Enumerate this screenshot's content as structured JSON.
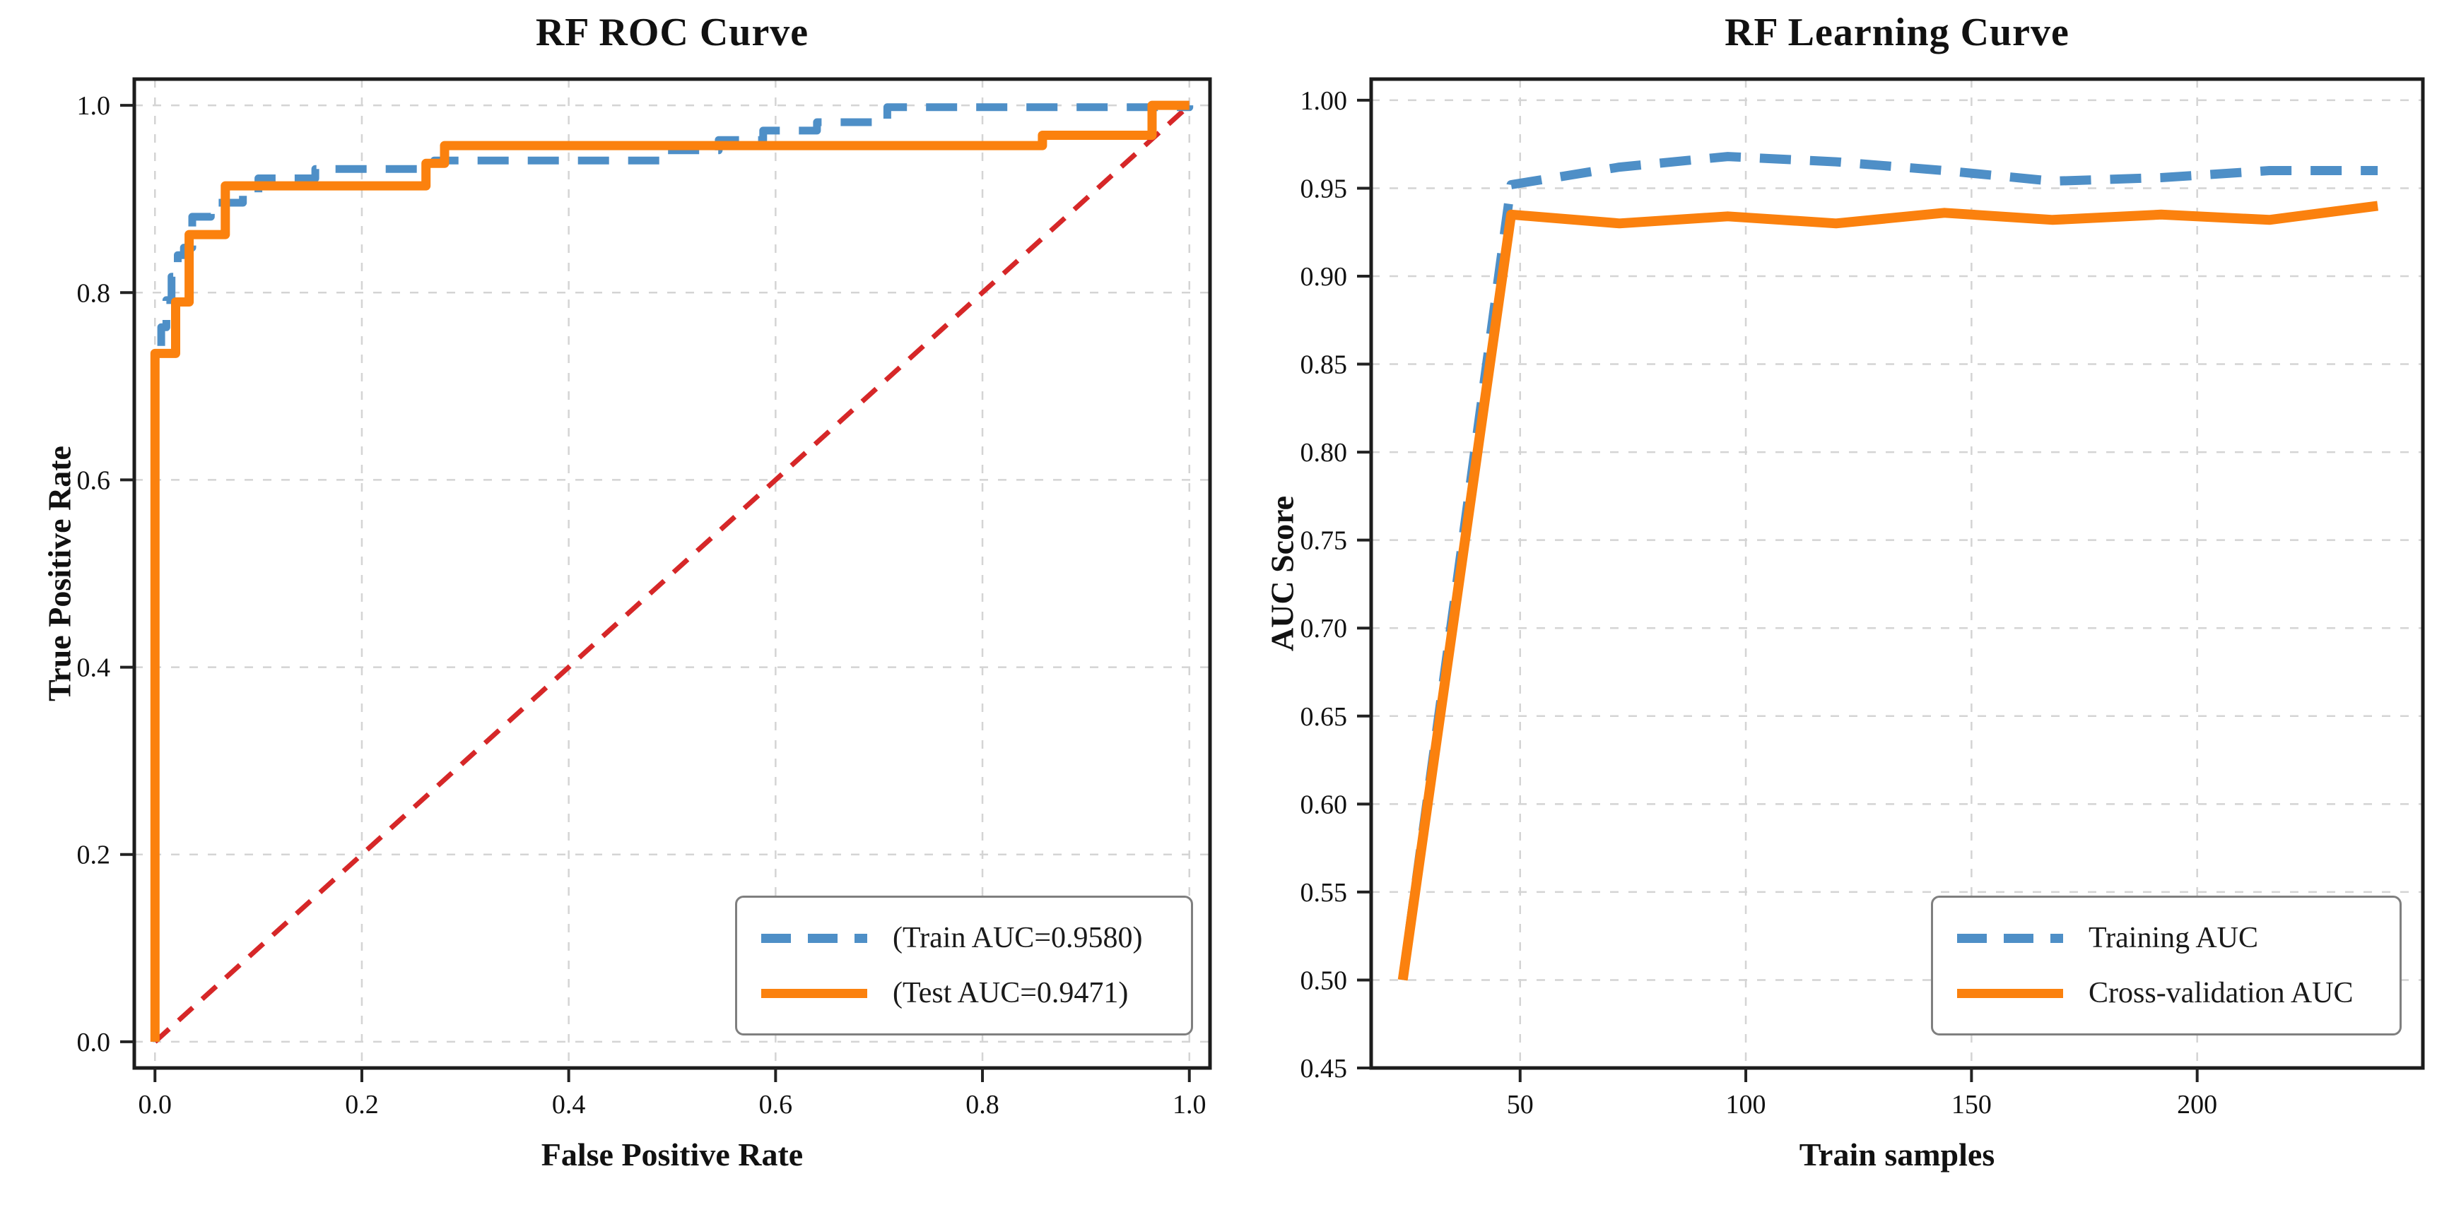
{
  "figure": {
    "background": "#ffffff",
    "colors": {
      "train_blue": "#4e8fc7",
      "test_orange": "#fb810e",
      "chance_red": "#d62728",
      "grid_gray": "#d4d4d4",
      "spine_black": "#1c1c1c",
      "legend_border": "#7f7f7f"
    }
  },
  "chart_data": [
    {
      "type": "line",
      "name": "roc",
      "title": "RF ROC Curve",
      "xlabel": "False Positive Rate",
      "ylabel": "True Positive Rate",
      "xlim": [
        -0.02,
        1.02
      ],
      "ylim": [
        -0.028,
        1.028
      ],
      "grid": true,
      "legend_position": "lower-right",
      "xticks": {
        "values": [
          0.0,
          0.2,
          0.4,
          0.6,
          0.8,
          1.0
        ],
        "labels": [
          "0.0",
          "0.2",
          "0.4",
          "0.6",
          "0.8",
          "1.0"
        ]
      },
      "yticks": {
        "values": [
          0.0,
          0.2,
          0.4,
          0.6,
          0.8,
          1.0
        ],
        "labels": [
          "0.0",
          "0.2",
          "0.4",
          "0.6",
          "0.8",
          "1.0"
        ]
      },
      "series": [
        {
          "name": "chance-diagonal",
          "label": "",
          "color": "#d62728",
          "style": "dashed-small",
          "width": 7,
          "points": [
            [
              0,
              0
            ],
            [
              1,
              1
            ]
          ]
        },
        {
          "name": "train-roc",
          "label": "(Train AUC=0.9580)",
          "color": "#4e8fc7",
          "style": "dashed",
          "width": 11,
          "points": [
            [
              0,
              0
            ],
            [
              0,
              0.728
            ],
            [
              0.006,
              0.728
            ],
            [
              0.006,
              0.763
            ],
            [
              0.011,
              0.763
            ],
            [
              0.011,
              0.792
            ],
            [
              0.016,
              0.792
            ],
            [
              0.016,
              0.817
            ],
            [
              0.022,
              0.817
            ],
            [
              0.022,
              0.84
            ],
            [
              0.028,
              0.84
            ],
            [
              0.028,
              0.848
            ],
            [
              0.036,
              0.848
            ],
            [
              0.036,
              0.881
            ],
            [
              0.054,
              0.881
            ],
            [
              0.054,
              0.896
            ],
            [
              0.085,
              0.896
            ],
            [
              0.085,
              0.907
            ],
            [
              0.1,
              0.907
            ],
            [
              0.1,
              0.922
            ],
            [
              0.155,
              0.922
            ],
            [
              0.155,
              0.932
            ],
            [
              0.27,
              0.932
            ],
            [
              0.27,
              0.941
            ],
            [
              0.49,
              0.941
            ],
            [
              0.49,
              0.952
            ],
            [
              0.545,
              0.952
            ],
            [
              0.545,
              0.963
            ],
            [
              0.588,
              0.963
            ],
            [
              0.588,
              0.973
            ],
            [
              0.64,
              0.973
            ],
            [
              0.64,
              0.982
            ],
            [
              0.708,
              0.982
            ],
            [
              0.708,
              0.998
            ],
            [
              1,
              0.998
            ],
            [
              1,
              1
            ]
          ]
        },
        {
          "name": "test-roc",
          "label": "(Test AUC=0.9471)",
          "color": "#fb810e",
          "style": "solid",
          "width": 13,
          "points": [
            [
              0,
              0
            ],
            [
              0,
              0.735
            ],
            [
              0.02,
              0.735
            ],
            [
              0.02,
              0.79
            ],
            [
              0.033,
              0.79
            ],
            [
              0.033,
              0.862
            ],
            [
              0.068,
              0.862
            ],
            [
              0.068,
              0.914
            ],
            [
              0.262,
              0.914
            ],
            [
              0.262,
              0.938
            ],
            [
              0.28,
              0.938
            ],
            [
              0.28,
              0.957
            ],
            [
              0.858,
              0.957
            ],
            [
              0.858,
              0.968
            ],
            [
              0.964,
              0.968
            ],
            [
              0.964,
              1.0
            ],
            [
              1,
              1
            ]
          ]
        }
      ]
    },
    {
      "type": "line",
      "name": "learning",
      "title": "RF Learning Curve",
      "xlabel": "Train samples",
      "ylabel": "AUC Score",
      "xlim": [
        17,
        250
      ],
      "ylim": [
        0.45,
        1.012
      ],
      "grid": true,
      "legend_position": "lower-right",
      "xticks": {
        "values": [
          50,
          100,
          150,
          200
        ],
        "labels": [
          "50",
          "100",
          "150",
          "200"
        ]
      },
      "yticks": {
        "values": [
          0.45,
          0.5,
          0.55,
          0.6,
          0.65,
          0.7,
          0.75,
          0.8,
          0.85,
          0.9,
          0.95,
          1.0
        ],
        "labels": [
          "0.45",
          "0.50",
          "0.55",
          "0.60",
          "0.65",
          "0.70",
          "0.75",
          "0.80",
          "0.85",
          "0.90",
          "0.95",
          "1.00"
        ]
      },
      "series": [
        {
          "name": "training-auc",
          "label": "Training AUC",
          "color": "#4e8fc7",
          "style": "dashed",
          "width": 13,
          "points": [
            [
              24,
              0.5
            ],
            [
              48,
              0.952
            ],
            [
              72,
              0.962
            ],
            [
              96,
              0.968
            ],
            [
              120,
              0.965
            ],
            [
              144,
              0.96
            ],
            [
              168,
              0.954
            ],
            [
              192,
              0.956
            ],
            [
              216,
              0.96
            ],
            [
              240,
              0.96
            ]
          ]
        },
        {
          "name": "cross-validation-auc",
          "label": "Cross-validation AUC",
          "color": "#fb810e",
          "style": "solid",
          "width": 14,
          "points": [
            [
              24,
              0.5
            ],
            [
              48,
              0.935
            ],
            [
              72,
              0.93
            ],
            [
              96,
              0.934
            ],
            [
              120,
              0.93
            ],
            [
              144,
              0.936
            ],
            [
              168,
              0.932
            ],
            [
              192,
              0.935
            ],
            [
              216,
              0.932
            ],
            [
              240,
              0.94
            ]
          ]
        }
      ]
    }
  ]
}
